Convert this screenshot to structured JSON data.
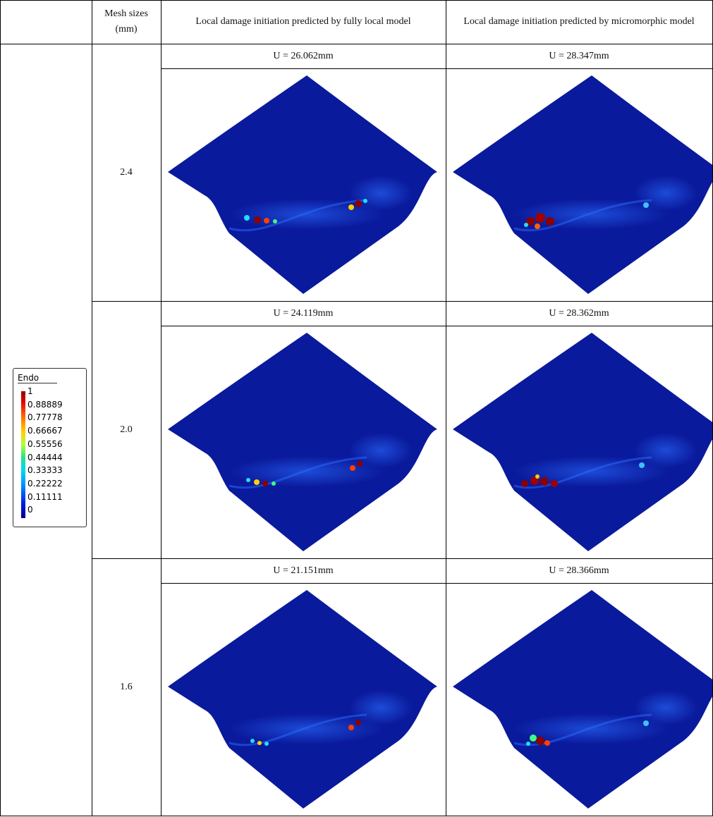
{
  "table": {
    "header": {
      "mesh": "Mesh sizes (mm)",
      "local": "Local damage initiation predicted by fully local model",
      "micro": "Local damage initiation predicted by micromorphic model"
    },
    "rows": [
      {
        "mesh": "2.4",
        "local": "U = 26.062mm",
        "micro": "U = 28.347mm"
      },
      {
        "mesh": "2.0",
        "local": "U = 24.119mm",
        "micro": "U = 28.362mm"
      },
      {
        "mesh": "1.6",
        "local": "U = 21.151mm",
        "micro": "U = 28.366mm"
      }
    ]
  },
  "legend": {
    "title": "Endo",
    "values": [
      "1",
      "0.88889",
      "0.77778",
      "0.66667",
      "0.55556",
      "0.44444",
      "0.33333",
      "0.22222",
      "0.11111",
      "0"
    ]
  }
}
